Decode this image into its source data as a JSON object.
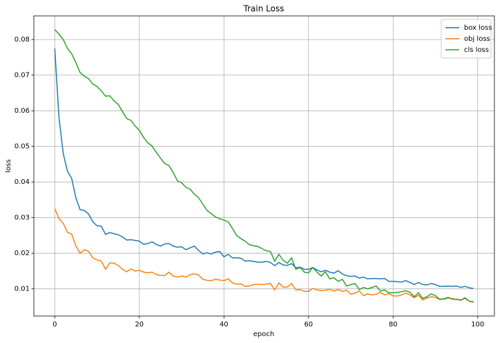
{
  "chart_data": {
    "type": "line",
    "title": "Train Loss",
    "x_label": "epoch",
    "y_label": "loss",
    "x": [
      0,
      1,
      2,
      3,
      4,
      5,
      6,
      7,
      8,
      9,
      10,
      11,
      12,
      13,
      14,
      15,
      16,
      17,
      18,
      19,
      20,
      21,
      22,
      23,
      24,
      25,
      26,
      27,
      28,
      29,
      30,
      31,
      32,
      33,
      34,
      35,
      36,
      37,
      38,
      39,
      40,
      41,
      42,
      43,
      44,
      45,
      46,
      47,
      48,
      49,
      50,
      51,
      52,
      53,
      54,
      55,
      56,
      57,
      58,
      59,
      60,
      61,
      62,
      63,
      64,
      65,
      66,
      67,
      68,
      69,
      70,
      71,
      72,
      73,
      74,
      75,
      76,
      77,
      78,
      79,
      80,
      81,
      82,
      83,
      84,
      85,
      86,
      87,
      88,
      89,
      90,
      91,
      92,
      93,
      94,
      95,
      96,
      97,
      98,
      99
    ],
    "series": [
      {
        "name": "box loss",
        "color": "#1f77b4",
        "values": [
          0.0775,
          0.058,
          0.048,
          0.043,
          0.041,
          0.0355,
          0.0322,
          0.032,
          0.031,
          0.0288,
          0.0277,
          0.0276,
          0.0253,
          0.0258,
          0.0255,
          0.0252,
          0.0246,
          0.0237,
          0.0238,
          0.0236,
          0.0234,
          0.0225,
          0.0227,
          0.0232,
          0.0225,
          0.022,
          0.0226,
          0.0227,
          0.022,
          0.0217,
          0.0218,
          0.021,
          0.0215,
          0.022,
          0.0208,
          0.0198,
          0.0201,
          0.0198,
          0.0203,
          0.0205,
          0.019,
          0.0197,
          0.0187,
          0.0187,
          0.0186,
          0.0178,
          0.0179,
          0.0177,
          0.0175,
          0.0175,
          0.0177,
          0.0174,
          0.0165,
          0.0174,
          0.0167,
          0.0166,
          0.0171,
          0.0159,
          0.0161,
          0.0155,
          0.0155,
          0.016,
          0.0153,
          0.0148,
          0.0152,
          0.0147,
          0.0144,
          0.0151,
          0.0142,
          0.0137,
          0.0135,
          0.0136,
          0.013,
          0.0133,
          0.0128,
          0.0129,
          0.0129,
          0.0128,
          0.0129,
          0.0121,
          0.0121,
          0.012,
          0.0119,
          0.0123,
          0.0118,
          0.0112,
          0.0118,
          0.0112,
          0.0111,
          0.0115,
          0.0112,
          0.0107,
          0.0107,
          0.0108,
          0.0107,
          0.0108,
          0.0104,
          0.0107,
          0.0103,
          0.0101
        ]
      },
      {
        "name": "obj loss",
        "color": "#ff7f0e",
        "values": [
          0.0325,
          0.0297,
          0.0284,
          0.0259,
          0.0254,
          0.022,
          0.02,
          0.021,
          0.0205,
          0.0187,
          0.0181,
          0.0178,
          0.0155,
          0.0173,
          0.0172,
          0.0166,
          0.0155,
          0.0148,
          0.0156,
          0.015,
          0.0152,
          0.0147,
          0.0145,
          0.0147,
          0.014,
          0.0138,
          0.0137,
          0.0147,
          0.0136,
          0.0133,
          0.0136,
          0.0133,
          0.014,
          0.0142,
          0.0139,
          0.0127,
          0.0124,
          0.0123,
          0.0127,
          0.0125,
          0.0123,
          0.0128,
          0.0117,
          0.0113,
          0.0114,
          0.0107,
          0.0108,
          0.0112,
          0.0113,
          0.0112,
          0.0113,
          0.0115,
          0.0097,
          0.0117,
          0.0105,
          0.0105,
          0.0115,
          0.0097,
          0.0098,
          0.0093,
          0.0093,
          0.0101,
          0.0097,
          0.0095,
          0.0096,
          0.0099,
          0.0094,
          0.0098,
          0.0093,
          0.0096,
          0.0085,
          0.0088,
          0.0094,
          0.0081,
          0.0086,
          0.0083,
          0.0085,
          0.009,
          0.0083,
          0.0087,
          0.008,
          0.008,
          0.0083,
          0.0088,
          0.0083,
          0.0075,
          0.0082,
          0.0069,
          0.0074,
          0.0078,
          0.0076,
          0.007,
          0.0071,
          0.0074,
          0.0073,
          0.007,
          0.0069,
          0.0073,
          0.0065,
          0.0062
        ]
      },
      {
        "name": "cls loss",
        "color": "#2ca02c",
        "values": [
          0.0828,
          0.0815,
          0.08,
          0.0775,
          0.076,
          0.0735,
          0.0707,
          0.0697,
          0.069,
          0.0675,
          0.0668,
          0.0656,
          0.0641,
          0.0642,
          0.0628,
          0.0618,
          0.0598,
          0.0578,
          0.0573,
          0.0557,
          0.0545,
          0.0525,
          0.051,
          0.0501,
          0.0483,
          0.0467,
          0.0452,
          0.0446,
          0.0427,
          0.0403,
          0.0398,
          0.0385,
          0.038,
          0.0366,
          0.0356,
          0.0338,
          0.032,
          0.0311,
          0.0302,
          0.0297,
          0.0293,
          0.0288,
          0.027,
          0.025,
          0.0241,
          0.0234,
          0.0224,
          0.0221,
          0.0219,
          0.0213,
          0.0207,
          0.0205,
          0.0178,
          0.0197,
          0.018,
          0.0172,
          0.0187,
          0.0155,
          0.016,
          0.0147,
          0.0145,
          0.016,
          0.0147,
          0.0136,
          0.0148,
          0.0128,
          0.0131,
          0.0121,
          0.0127,
          0.0108,
          0.0112,
          0.0115,
          0.0098,
          0.0104,
          0.01,
          0.0104,
          0.0108,
          0.0094,
          0.0097,
          0.0089,
          0.0089,
          0.009,
          0.0092,
          0.0095,
          0.009,
          0.0078,
          0.0089,
          0.0073,
          0.0078,
          0.0086,
          0.0081,
          0.0071,
          0.0072,
          0.0076,
          0.0071,
          0.0071,
          0.0068,
          0.0075,
          0.0065,
          0.0064
        ]
      }
    ],
    "xlim": [
      -4.95,
      103.95
    ],
    "xticks": [
      0,
      20,
      40,
      60,
      80,
      100
    ],
    "ylim": [
      0.00237,
      0.08663
    ],
    "yticks": [
      0.01,
      0.02,
      0.03,
      0.04,
      0.05,
      0.06,
      0.07,
      0.08
    ],
    "grid": true,
    "legend": "upper-right"
  }
}
